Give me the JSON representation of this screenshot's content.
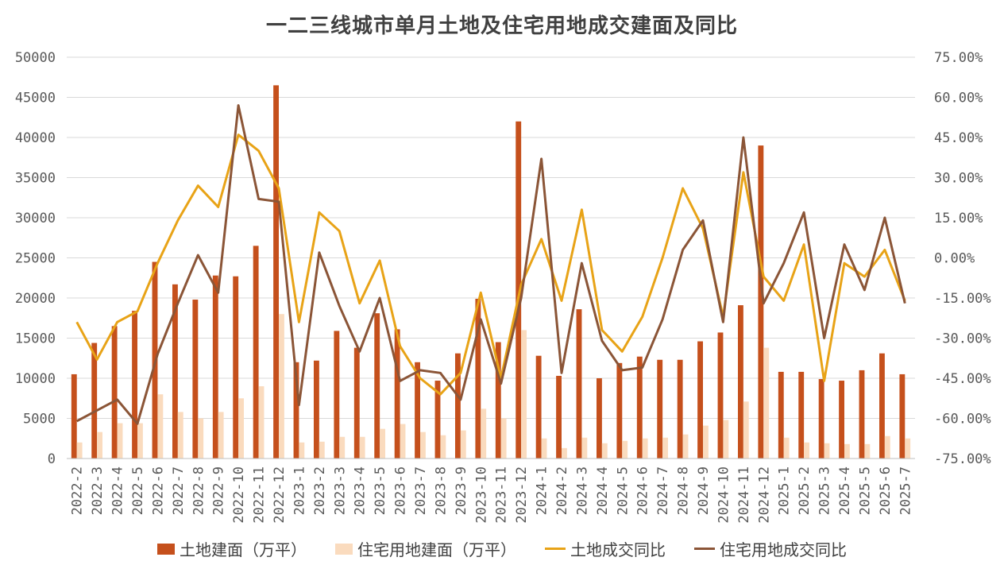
{
  "chart_data": {
    "type": "bar",
    "title": "一二三线城市单月土地及住宅用地成交建面及同比",
    "categories": [
      "2022-2",
      "2022-3",
      "2022-4",
      "2022-5",
      "2022-6",
      "2022-7",
      "2022-8",
      "2022-9",
      "2022-10",
      "2022-11",
      "2022-12",
      "2023-1",
      "2023-2",
      "2023-3",
      "2023-4",
      "2023-5",
      "2023-6",
      "2023-7",
      "2023-8",
      "2023-9",
      "2023-10",
      "2023-11",
      "2023-12",
      "2024-1",
      "2024-2",
      "2024-3",
      "2024-4",
      "2024-5",
      "2024-6",
      "2024-7",
      "2024-8",
      "2024-9",
      "2024-10",
      "2024-11",
      "2024-12",
      "2025-1",
      "2025-2",
      "2025-3",
      "2025-4",
      "2025-5",
      "2025-6",
      "2025-7"
    ],
    "y_left": {
      "ylim": [
        0,
        50000
      ],
      "ticks": [
        "0",
        "5000",
        "10000",
        "15000",
        "20000",
        "25000",
        "30000",
        "35000",
        "40000",
        "45000",
        "50000"
      ]
    },
    "y_right": {
      "ylim": [
        -75,
        75
      ],
      "ticks": [
        "-75.00%",
        "-60.00%",
        "-45.00%",
        "-30.00%",
        "-15.00%",
        "0.00%",
        "15.00%",
        "30.00%",
        "45.00%",
        "60.00%",
        "75.00%"
      ]
    },
    "series": [
      {
        "name": "土地建面（万平）",
        "kind": "bar",
        "axis": "left",
        "color": "#C5501C",
        "values": [
          10500,
          14400,
          16500,
          18400,
          24500,
          21700,
          19800,
          22800,
          22700,
          26500,
          46500,
          12000,
          12200,
          15900,
          13800,
          18100,
          16100,
          12000,
          9700,
          13100,
          19900,
          14500,
          42000,
          12800,
          10300,
          18600,
          10000,
          11900,
          12700,
          12300,
          12300,
          14600,
          15700,
          19100,
          39000,
          10800,
          10800,
          9900,
          9700,
          11000,
          13100,
          10500
        ]
      },
      {
        "name": "住宅用地建面（万平）",
        "kind": "bar",
        "axis": "left",
        "color": "#FADBBE",
        "values": [
          2000,
          3300,
          4400,
          4400,
          8000,
          5800,
          5000,
          5800,
          7500,
          9000,
          18000,
          2000,
          2100,
          2700,
          2700,
          3700,
          4300,
          3300,
          2900,
          3500,
          6200,
          5000,
          16000,
          2500,
          1300,
          2600,
          1900,
          2200,
          2500,
          2600,
          3000,
          4100,
          4800,
          7100,
          13800,
          2600,
          2000,
          1900,
          1800,
          1800,
          2800,
          2500
        ]
      },
      {
        "name": "土地成交同比",
        "kind": "line",
        "axis": "right",
        "color": "#E8A317",
        "values": [
          -24,
          -38,
          -24,
          -20,
          -2,
          14,
          27,
          19,
          46,
          40,
          26,
          -24,
          17,
          10,
          -17,
          -1,
          -33,
          -45,
          -51,
          -43,
          -13,
          -45,
          -10,
          7,
          -16,
          18,
          -27,
          -35,
          -22,
          0,
          26,
          11,
          -22,
          32,
          -7,
          -16,
          5,
          -46,
          -2,
          -7,
          3,
          -16
        ]
      },
      {
        "name": "住宅用地成交同比",
        "kind": "line",
        "axis": "right",
        "color": "#8B5537",
        "values": [
          -61,
          -57,
          -53,
          -62,
          -36,
          -17,
          1,
          -13,
          57,
          22,
          21,
          -55,
          2,
          -18,
          -35,
          -15,
          -46,
          -42,
          -43,
          -53,
          -23,
          -47,
          -15,
          37,
          -43,
          -2,
          -31,
          -42,
          -41,
          -23,
          3,
          14,
          -24,
          45,
          -17,
          -2,
          17,
          -30,
          5,
          -12,
          15,
          -17
        ]
      }
    ],
    "legend_position": "bottom",
    "grid": true
  }
}
